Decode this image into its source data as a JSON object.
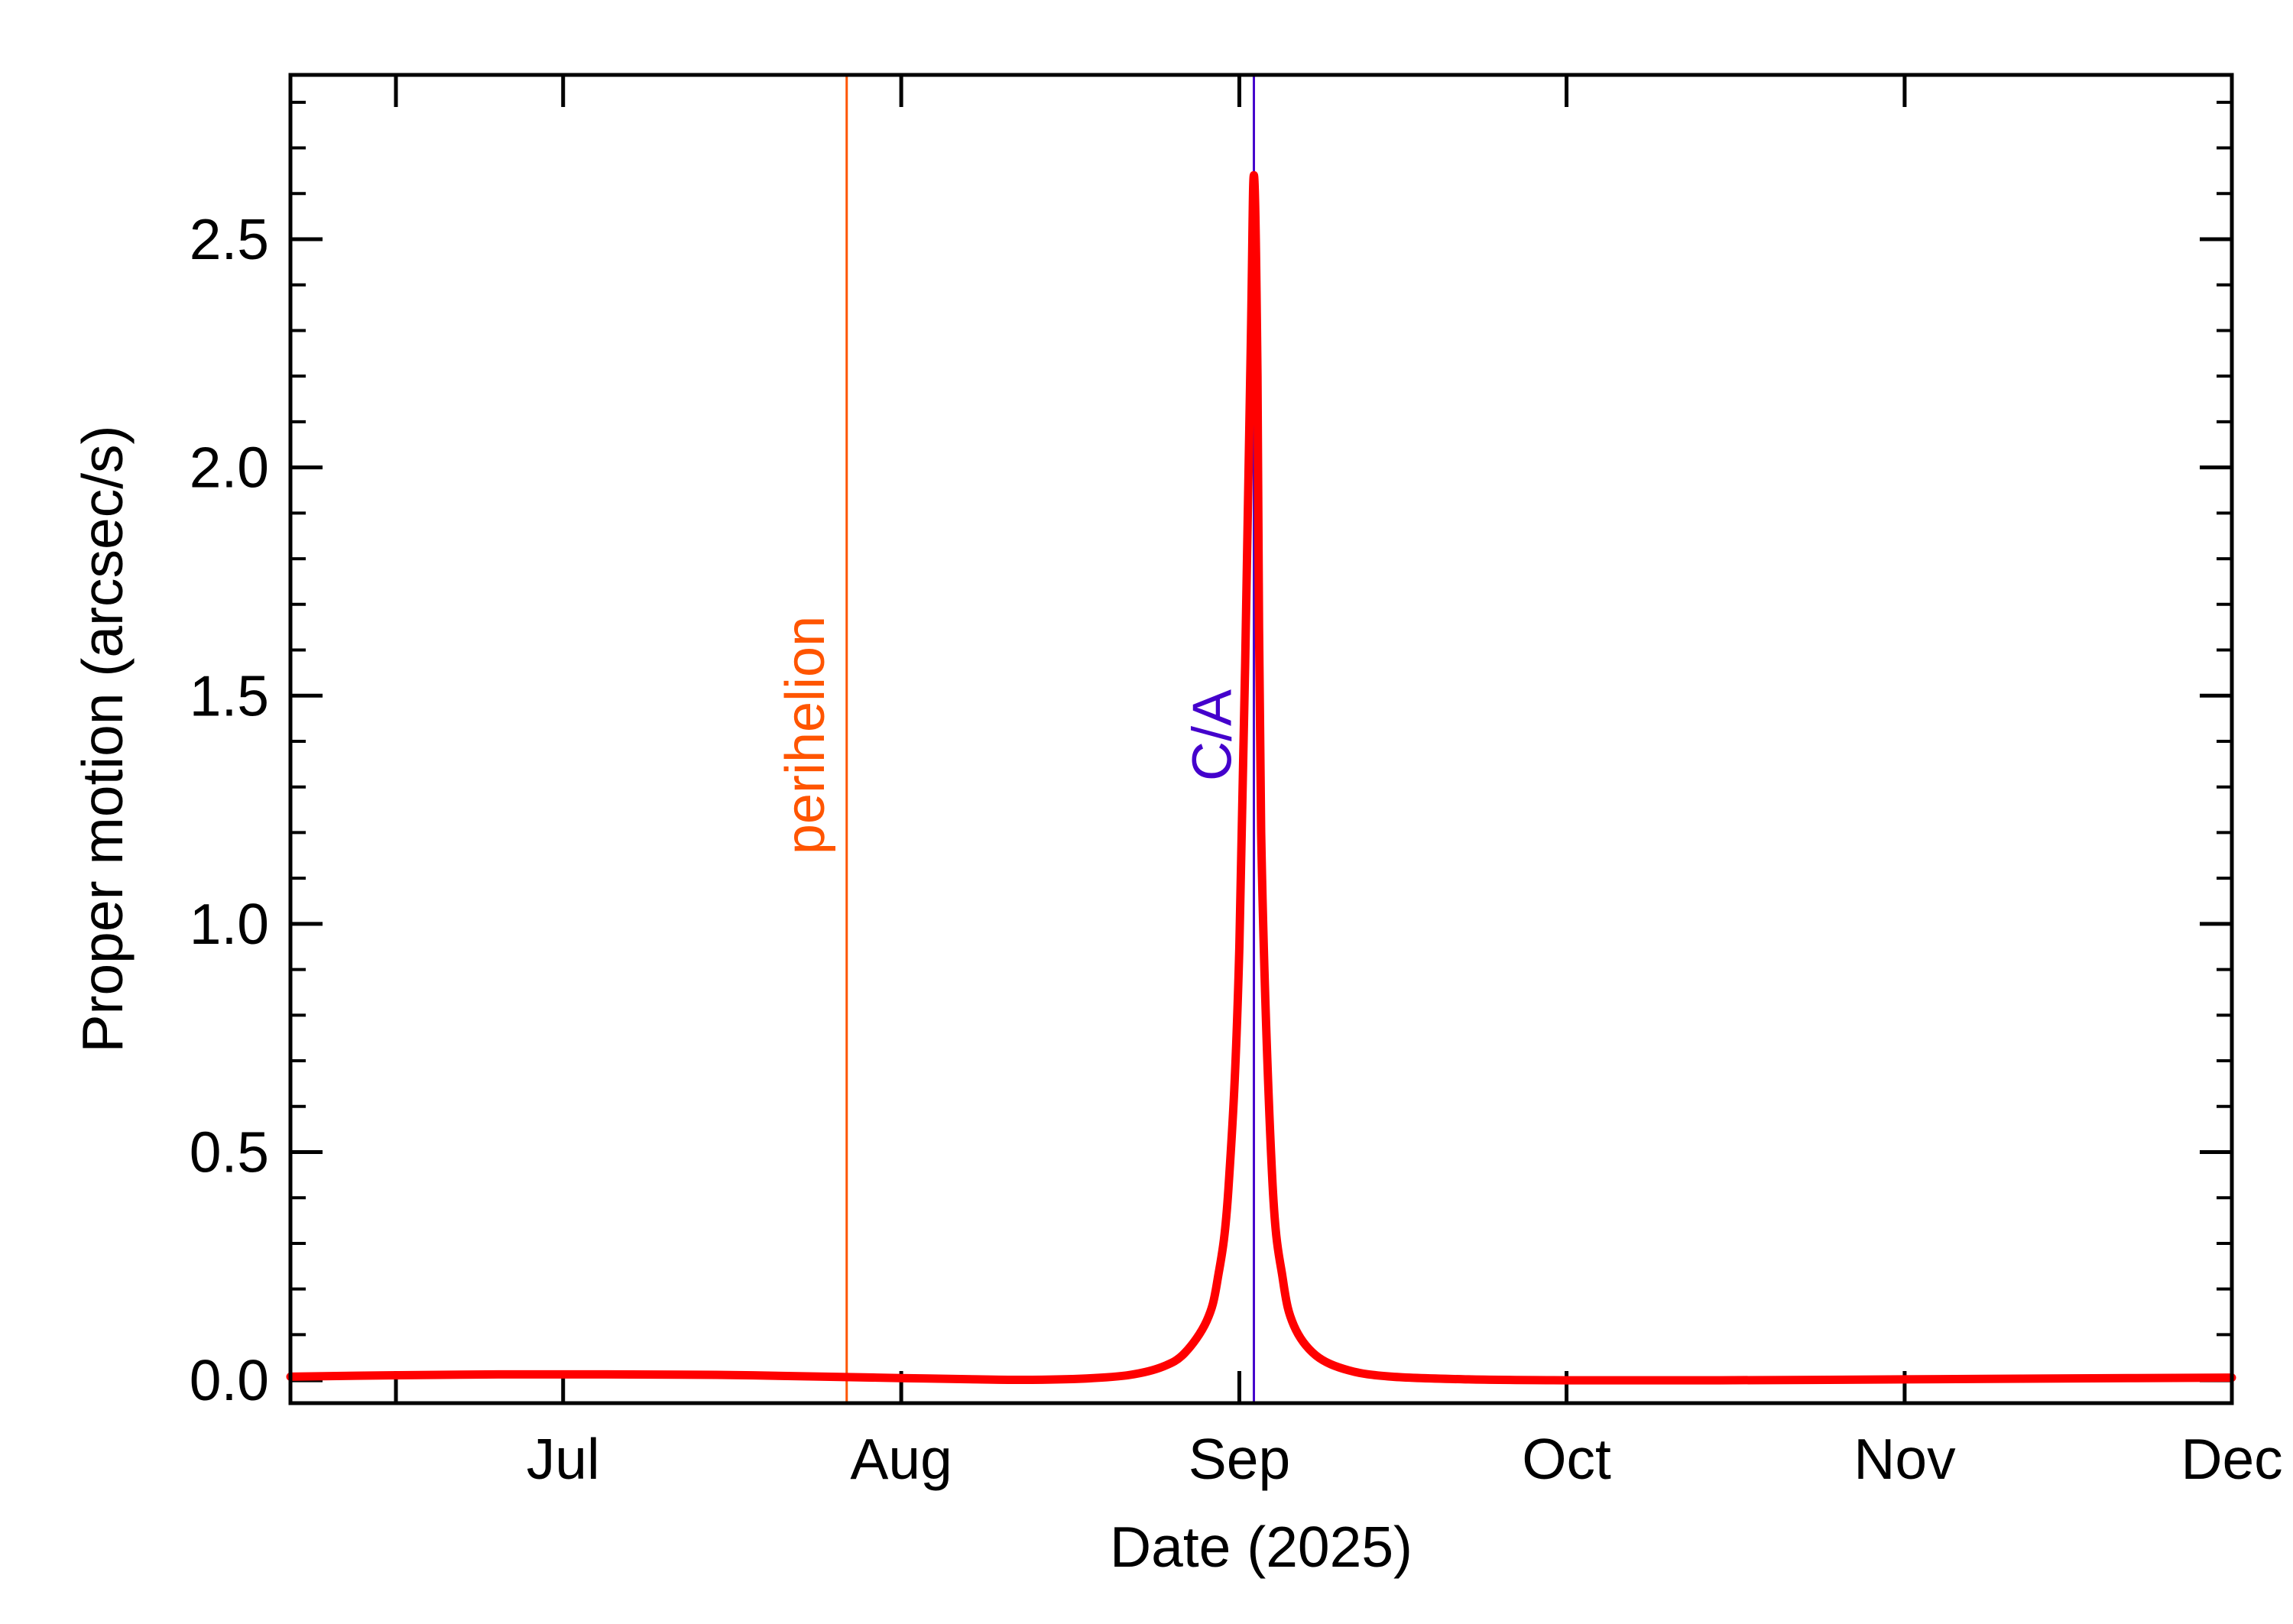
{
  "chart_data": {
    "type": "line",
    "xlabel": "Date (2025)",
    "ylabel": "Proper motion (arcsec/s)",
    "xlim": [
      "2025-06-06",
      "2025-12-01"
    ],
    "ylim": [
      -0.05,
      2.86
    ],
    "grid": false,
    "x_ticks": [
      {
        "date": "2025-07-01",
        "label": "Jul"
      },
      {
        "date": "2025-08-01",
        "label": "Aug"
      },
      {
        "date": "2025-09-01",
        "label": "Sep"
      },
      {
        "date": "2025-10-01",
        "label": "Oct"
      },
      {
        "date": "2025-11-01",
        "label": "Nov"
      },
      {
        "date": "2025-12-01",
        "label": "Dec"
      }
    ],
    "y_ticks": [
      {
        "value": 0.0,
        "label": "0.0"
      },
      {
        "value": 0.5,
        "label": "0.5"
      },
      {
        "value": 1.0,
        "label": "1.0"
      },
      {
        "value": 1.5,
        "label": "1.5"
      },
      {
        "value": 2.0,
        "label": "2.0"
      },
      {
        "value": 2.5,
        "label": "2.5"
      }
    ],
    "series": [
      {
        "color": "#ff0000",
        "points": [
          [
            "2025-06-06",
            0.008
          ],
          [
            "2025-06-15",
            0.011
          ],
          [
            "2025-06-25",
            0.013
          ],
          [
            "2025-07-05",
            0.013
          ],
          [
            "2025-07-15",
            0.012
          ],
          [
            "2025-07-25",
            0.008
          ],
          [
            "2025-08-01",
            0.005
          ],
          [
            "2025-08-08",
            0.002
          ],
          [
            "2025-08-13",
            0.001
          ],
          [
            "2025-08-18",
            0.004
          ],
          [
            "2025-08-22",
            0.012
          ],
          [
            "2025-08-25",
            0.03
          ],
          [
            "2025-08-27",
            0.06
          ],
          [
            "2025-08-29",
            0.13
          ],
          [
            "2025-08-30",
            0.22
          ],
          [
            "2025-08-31",
            0.42
          ],
          [
            "2025-09-01",
            0.95
          ],
          [
            "2025-09-02",
            2.2
          ],
          [
            "2025-09-02T08:00",
            2.64
          ],
          [
            "2025-09-02T16:00",
            2.2
          ],
          [
            "2025-09-03",
            1.2
          ],
          [
            "2025-09-04",
            0.45
          ],
          [
            "2025-09-05",
            0.22
          ],
          [
            "2025-09-06",
            0.12
          ],
          [
            "2025-09-08",
            0.055
          ],
          [
            "2025-09-11",
            0.022
          ],
          [
            "2025-09-15",
            0.008
          ],
          [
            "2025-09-22",
            0.002
          ],
          [
            "2025-10-01",
            0.0
          ],
          [
            "2025-10-15",
            0.0
          ],
          [
            "2025-11-01",
            0.002
          ],
          [
            "2025-11-15",
            0.004
          ],
          [
            "2025-12-01",
            0.006
          ]
        ]
      }
    ],
    "markers": [
      {
        "date": "2025-07-27",
        "label": "perihelion",
        "color": "#ff5500"
      },
      {
        "date": "2025-09-02T08:00",
        "label": "C/A",
        "color": "#4400cc"
      }
    ]
  }
}
